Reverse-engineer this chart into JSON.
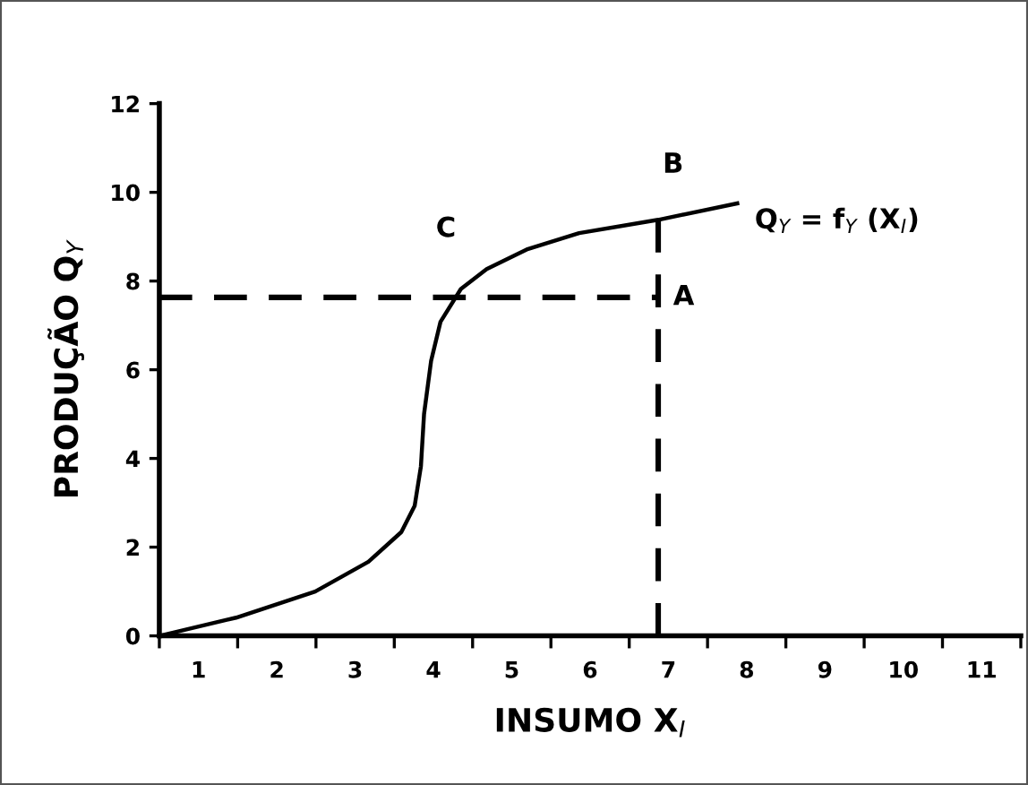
{
  "chart_data": {
    "type": "line",
    "xlabel": "INSUMO X$_{I}$",
    "ylabel": "PRODUÇÃO Q$_{Y}$",
    "xlim": [
      0.5,
      11.5
    ],
    "ylim": [
      0,
      12
    ],
    "xticks": [
      {
        "value": 0.5,
        "label": null
      },
      1,
      {
        "value": 1.5,
        "label": null
      },
      2,
      {
        "value": 2.5,
        "label": null
      },
      3,
      {
        "value": 3.5,
        "label": null
      },
      4,
      {
        "value": 4.5,
        "label": null
      },
      5,
      {
        "value": 5.5,
        "label": null
      },
      6,
      {
        "value": 6.5,
        "label": null
      },
      7,
      {
        "value": 7.5,
        "label": null
      },
      8,
      {
        "value": 8.5,
        "label": null
      },
      9,
      {
        "value": 9.5,
        "label": null
      },
      10,
      {
        "value": 10.5,
        "label": null
      },
      11,
      {
        "value": 11.5,
        "label": null
      }
    ],
    "yticks": [
      0,
      2,
      4,
      6,
      8,
      10,
      12
    ],
    "grid": false,
    "legend": false,
    "marker": "none",
    "series": [
      {
        "color": "#000000",
        "line_style": "solid",
        "x": [
          0.5,
          1.48,
          2.49,
          3.17,
          3.59,
          3.76,
          3.84,
          3.88,
          3.97,
          4.09,
          4.35,
          4.68,
          5.19,
          5.86,
          6.87,
          7.88
        ],
        "values": [
          0,
          0.41,
          1.0,
          1.67,
          2.34,
          2.93,
          3.82,
          5.0,
          6.2,
          7.08,
          7.82,
          8.27,
          8.71,
          9.08,
          9.38,
          9.75
        ]
      },
      {
        "color": "#000000",
        "line_style": "dashed",
        "x": [
          0.5,
          6.87
        ],
        "values": [
          7.63,
          7.63
        ]
      },
      {
        "color": "#000000",
        "line_style": "dashed",
        "x": [
          6.87,
          6.87
        ],
        "values": [
          0,
          9.38
        ]
      }
    ],
    "annotations": [
      {
        "text": "C",
        "x": 4.35,
        "y": 7.82
      },
      {
        "text": "B",
        "x": 6.87,
        "y": 9.38
      },
      {
        "text": "A",
        "x": 6.87,
        "y": 7.63
      },
      {
        "text": "Q$_{Y}$ = f$_{Y}$ (X$_{I}$)",
        "x": 7.88,
        "y": 9.75
      }
    ]
  }
}
